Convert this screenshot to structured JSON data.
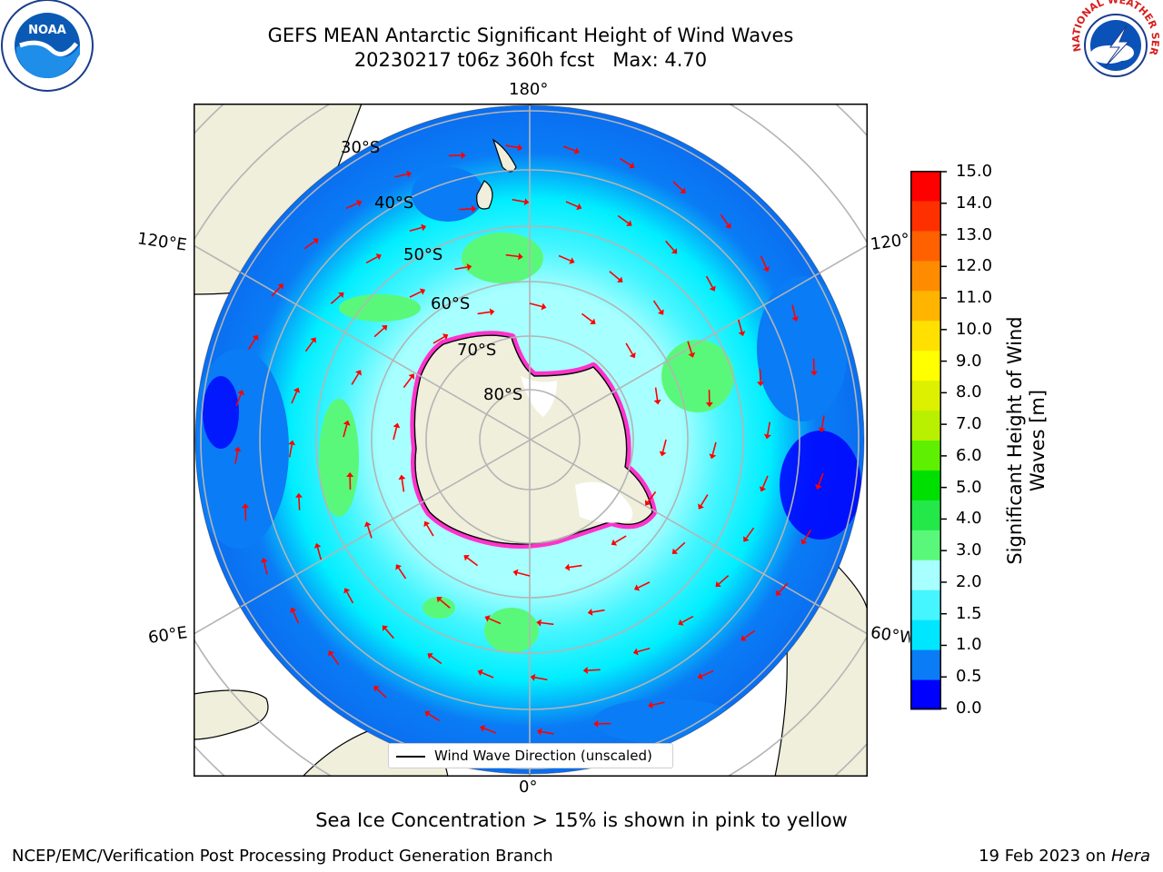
{
  "header": {
    "title_line1": "GEFS MEAN Antarctic Significant Height of Wind Waves",
    "title_line2": "20230217 t06z 360h fcst   Max: 4.70"
  },
  "logos": {
    "left": {
      "icon": "noaa-logo",
      "text": "NOAA"
    },
    "right": {
      "icon": "national-weather-service-logo",
      "text": "NATIONAL WEATHER SERVICE"
    }
  },
  "map": {
    "longitude_labels": {
      "top": "180°",
      "bottom": "0°",
      "upper_left": "120°E",
      "upper_right": "120°W",
      "lower_left": "60°E",
      "lower_right": "60°W"
    },
    "latitude_labels": [
      "30°S",
      "40°S",
      "50°S",
      "60°S",
      "70°S",
      "80°S"
    ],
    "legend_label": "Wind Wave Direction (unscaled)",
    "colors": {
      "land": "#efefdc",
      "ocean_low": "#0000ff",
      "arrow": "#ff0000",
      "sea_ice": "#ff33cc"
    }
  },
  "colorbar": {
    "label_line1": "Significant Height of Wind",
    "label_line2": "Waves [m]",
    "ticks": [
      "15.0",
      "14.0",
      "13.0",
      "12.0",
      "11.0",
      "10.0",
      "9.0",
      "8.0",
      "7.0",
      "6.0",
      "5.0",
      "4.0",
      "3.0",
      "2.0",
      "1.5",
      "1.0",
      "0.5",
      "0.0"
    ],
    "colors_bottom_to_top": [
      "#0000ff",
      "#0a7cf5",
      "#00e6ff",
      "#45f5ff",
      "#a8ffff",
      "#5af87a",
      "#22e84a",
      "#00e000",
      "#5ef000",
      "#b8f000",
      "#dcf000",
      "#ffff00",
      "#ffe000",
      "#ffb400",
      "#ff8c00",
      "#ff6000",
      "#ff3000",
      "#ff0000"
    ]
  },
  "notes": {
    "sea_ice": "Sea Ice Concentration > 15% is shown in pink to yellow"
  },
  "footer": {
    "left": "NCEP/EMC/Verification Post Processing Product Generation Branch",
    "right_prefix": "19 Feb 2023 on ",
    "right_host": "Hera"
  }
}
